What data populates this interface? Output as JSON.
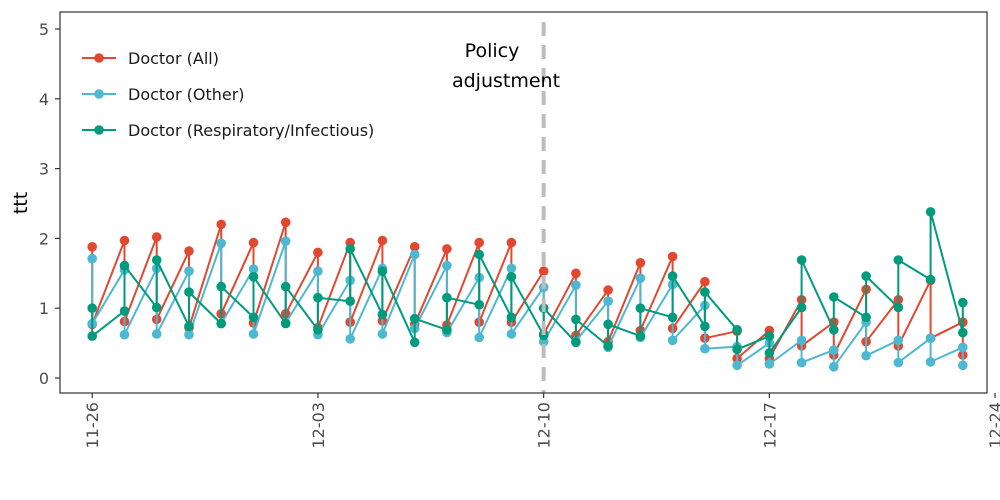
{
  "chart_data": {
    "type": "line",
    "title": "",
    "xlabel": "",
    "ylabel": "ttt",
    "ylim": [
      0,
      5
    ],
    "y_ticks": [
      "0",
      "1",
      "2",
      "3",
      "4",
      "5"
    ],
    "x_range": [
      -1.0,
      27.75
    ],
    "x_ticks": [
      {
        "x": 0,
        "label": "11-26"
      },
      {
        "x": 7,
        "label": "12-03"
      },
      {
        "x": 14,
        "label": "12-10"
      },
      {
        "x": 21,
        "label": "12-17"
      },
      {
        "x": 28,
        "label": "12-24"
      }
    ],
    "x_tick_rotation": "vertical",
    "grid": false,
    "legend": {
      "position": "top-left"
    },
    "annotation": {
      "x": 14,
      "line1": "Policy",
      "line2": "adjustment",
      "line_style": "dashed",
      "line_color": "#bdbdbd"
    },
    "series": [
      {
        "name": "Doctor (All)",
        "color": "#e2472f",
        "points": [
          [
            0,
            1.88
          ],
          [
            0,
            0.77
          ],
          [
            1,
            1.97
          ],
          [
            1,
            0.81
          ],
          [
            2,
            2.02
          ],
          [
            2,
            0.84
          ],
          [
            3,
            1.82
          ],
          [
            3,
            0.72
          ],
          [
            4,
            2.2
          ],
          [
            4,
            0.92
          ],
          [
            5,
            1.94
          ],
          [
            5,
            0.79
          ],
          [
            6,
            2.23
          ],
          [
            6,
            0.92
          ],
          [
            7,
            1.8
          ],
          [
            7,
            0.72
          ],
          [
            8,
            1.94
          ],
          [
            8,
            0.8
          ],
          [
            9,
            1.97
          ],
          [
            9,
            0.82
          ],
          [
            10,
            1.88
          ],
          [
            10,
            0.77
          ],
          [
            11,
            1.85
          ],
          [
            11,
            0.76
          ],
          [
            12,
            1.94
          ],
          [
            12,
            0.8
          ],
          [
            13,
            1.94
          ],
          [
            13,
            0.8
          ],
          [
            14,
            1.53
          ],
          [
            14,
            0.63
          ],
          [
            15,
            1.5
          ],
          [
            15,
            0.61
          ],
          [
            16,
            1.26
          ],
          [
            16,
            0.52
          ],
          [
            17,
            1.65
          ],
          [
            17,
            0.68
          ],
          [
            18,
            1.74
          ],
          [
            18,
            0.71
          ],
          [
            19,
            1.38
          ],
          [
            19,
            0.57
          ],
          [
            20,
            0.67
          ],
          [
            20,
            0.28
          ],
          [
            21,
            0.68
          ],
          [
            21,
            0.28
          ],
          [
            22,
            1.12
          ],
          [
            22,
            0.46
          ],
          [
            23,
            0.8
          ],
          [
            23,
            0.33
          ],
          [
            24,
            1.27
          ],
          [
            24,
            0.52
          ],
          [
            25,
            1.12
          ],
          [
            25,
            0.46
          ],
          [
            26,
            1.4
          ],
          [
            26,
            0.57
          ],
          [
            27,
            0.8
          ],
          [
            27,
            0.33
          ]
        ]
      },
      {
        "name": "Doctor (Other)",
        "color": "#4db8d1",
        "points": [
          [
            0,
            1.71
          ],
          [
            0,
            0.78
          ],
          [
            1,
            1.55
          ],
          [
            1,
            0.62
          ],
          [
            2,
            1.57
          ],
          [
            2,
            0.63
          ],
          [
            3,
            1.53
          ],
          [
            3,
            0.62
          ],
          [
            4,
            1.93
          ],
          [
            4,
            0.78
          ],
          [
            5,
            1.56
          ],
          [
            5,
            0.63
          ],
          [
            6,
            1.96
          ],
          [
            6,
            0.79
          ],
          [
            7,
            1.53
          ],
          [
            7,
            0.62
          ],
          [
            8,
            1.4
          ],
          [
            8,
            0.56
          ],
          [
            9,
            1.57
          ],
          [
            9,
            0.63
          ],
          [
            10,
            1.77
          ],
          [
            10,
            0.71
          ],
          [
            11,
            1.61
          ],
          [
            11,
            0.65
          ],
          [
            12,
            1.44
          ],
          [
            12,
            0.58
          ],
          [
            13,
            1.57
          ],
          [
            13,
            0.63
          ],
          [
            14,
            1.3
          ],
          [
            14,
            0.52
          ],
          [
            15,
            1.33
          ],
          [
            15,
            0.53
          ],
          [
            16,
            1.1
          ],
          [
            16,
            0.44
          ],
          [
            17,
            1.43
          ],
          [
            17,
            0.58
          ],
          [
            18,
            1.34
          ],
          [
            18,
            0.54
          ],
          [
            19,
            1.04
          ],
          [
            19,
            0.42
          ],
          [
            20,
            0.45
          ],
          [
            20,
            0.18
          ],
          [
            21,
            0.5
          ],
          [
            21,
            0.2
          ],
          [
            22,
            0.54
          ],
          [
            22,
            0.22
          ],
          [
            23,
            0.4
          ],
          [
            23,
            0.16
          ],
          [
            24,
            0.8
          ],
          [
            24,
            0.32
          ],
          [
            25,
            0.54
          ],
          [
            25,
            0.22
          ],
          [
            26,
            0.57
          ],
          [
            26,
            0.23
          ],
          [
            27,
            0.44
          ],
          [
            27,
            0.18
          ]
        ]
      },
      {
        "name": "Doctor (Respiratory/Infectious)",
        "color": "#009b7d",
        "points": [
          [
            0,
            1.0
          ],
          [
            0,
            0.6
          ],
          [
            1,
            0.96
          ],
          [
            1,
            1.61
          ],
          [
            2,
            1.01
          ],
          [
            2,
            1.69
          ],
          [
            3,
            0.74
          ],
          [
            3,
            1.23
          ],
          [
            4,
            0.78
          ],
          [
            4,
            1.31
          ],
          [
            5,
            0.87
          ],
          [
            5,
            1.45
          ],
          [
            6,
            0.78
          ],
          [
            6,
            1.31
          ],
          [
            7,
            0.69
          ],
          [
            7,
            1.15
          ],
          [
            8,
            1.1
          ],
          [
            8,
            1.85
          ],
          [
            9,
            0.91
          ],
          [
            9,
            1.53
          ],
          [
            10,
            0.51
          ],
          [
            10,
            0.85
          ],
          [
            11,
            0.69
          ],
          [
            11,
            1.15
          ],
          [
            12,
            1.05
          ],
          [
            12,
            1.77
          ],
          [
            13,
            0.87
          ],
          [
            13,
            1.45
          ],
          [
            14,
            0.61
          ],
          [
            14,
            1.0
          ],
          [
            15,
            0.51
          ],
          [
            15,
            0.84
          ],
          [
            16,
            0.46
          ],
          [
            16,
            0.77
          ],
          [
            17,
            0.6
          ],
          [
            17,
            1.0
          ],
          [
            18,
            0.87
          ],
          [
            18,
            1.46
          ],
          [
            19,
            0.74
          ],
          [
            19,
            1.23
          ],
          [
            20,
            0.69
          ],
          [
            20,
            0.41
          ],
          [
            21,
            0.6
          ],
          [
            21,
            0.36
          ],
          [
            22,
            1.01
          ],
          [
            22,
            1.69
          ],
          [
            23,
            0.69
          ],
          [
            23,
            1.16
          ],
          [
            24,
            0.87
          ],
          [
            24,
            1.46
          ],
          [
            25,
            1.01
          ],
          [
            25,
            1.69
          ],
          [
            26,
            1.41
          ],
          [
            26,
            2.38
          ],
          [
            27,
            0.65
          ],
          [
            27,
            1.08
          ]
        ]
      }
    ]
  }
}
